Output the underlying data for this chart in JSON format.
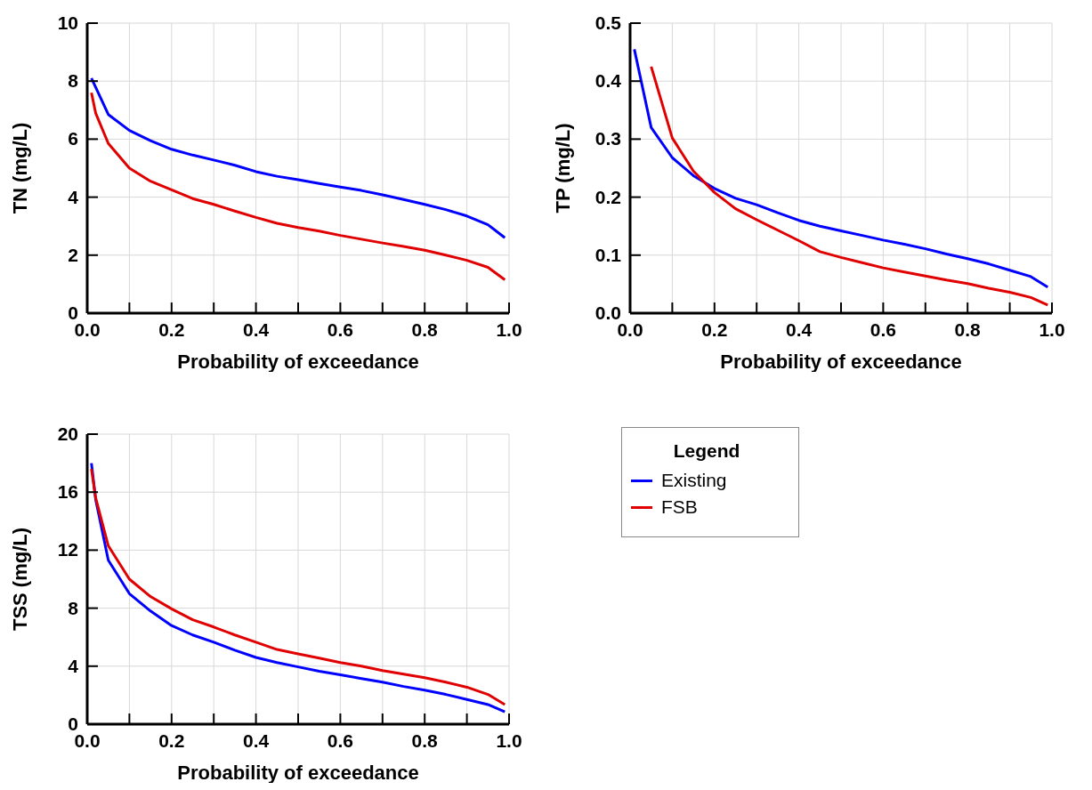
{
  "chart_data": [
    {
      "type": "line",
      "xlabel": "Probability of exceedance",
      "ylabel": "TN (mg/L)",
      "xlim": [
        0,
        1
      ],
      "ylim": [
        0,
        10
      ],
      "xticks": [
        {
          "value": 0,
          "label": "0.0"
        },
        {
          "value": 0.1,
          "label": null
        },
        {
          "value": 0.2,
          "label": "0.2"
        },
        {
          "value": 0.3,
          "label": null
        },
        {
          "value": 0.4,
          "label": "0.4"
        },
        {
          "value": 0.5,
          "label": null
        },
        {
          "value": 0.6,
          "label": "0.6"
        },
        {
          "value": 0.7,
          "label": null
        },
        {
          "value": 0.8,
          "label": "0.8"
        },
        {
          "value": 0.9,
          "label": null
        },
        {
          "value": 1,
          "label": "1.0"
        }
      ],
      "yticks": [
        0,
        2,
        4,
        6,
        8,
        10
      ],
      "grid": true,
      "legend": false,
      "marker": "none",
      "line_style": "solid",
      "series": [
        {
          "color": "#0000ff",
          "x": [
            0.01,
            0.05,
            0.1,
            0.15,
            0.2,
            0.25,
            0.3,
            0.35,
            0.4,
            0.45,
            0.5,
            0.55,
            0.6,
            0.65,
            0.7,
            0.75,
            0.8,
            0.85,
            0.9,
            0.95,
            0.99
          ],
          "values": [
            8.1,
            6.85,
            6.3,
            5.95,
            5.65,
            5.45,
            5.28,
            5.1,
            4.88,
            4.72,
            4.6,
            4.47,
            4.35,
            4.23,
            4.08,
            3.92,
            3.75,
            3.57,
            3.35,
            3.05,
            2.6
          ]
        },
        {
          "color": "#e00000",
          "x": [
            0.01,
            0.02,
            0.05,
            0.1,
            0.15,
            0.2,
            0.25,
            0.3,
            0.35,
            0.4,
            0.45,
            0.5,
            0.55,
            0.6,
            0.65,
            0.7,
            0.75,
            0.8,
            0.85,
            0.9,
            0.95,
            0.99
          ],
          "values": [
            7.6,
            6.9,
            5.85,
            5.0,
            4.55,
            4.25,
            3.95,
            3.75,
            3.52,
            3.3,
            3.1,
            2.95,
            2.83,
            2.68,
            2.55,
            2.42,
            2.3,
            2.17,
            2.0,
            1.82,
            1.58,
            1.15
          ]
        }
      ]
    },
    {
      "type": "line",
      "xlabel": "Probability of exceedance",
      "ylabel": "TP (mg/L)",
      "xlim": [
        0,
        1
      ],
      "ylim": [
        0,
        0.5
      ],
      "xticks": [
        {
          "value": 0,
          "label": "0.0"
        },
        {
          "value": 0.1,
          "label": null
        },
        {
          "value": 0.2,
          "label": "0.2"
        },
        {
          "value": 0.3,
          "label": null
        },
        {
          "value": 0.4,
          "label": "0.4"
        },
        {
          "value": 0.5,
          "label": null
        },
        {
          "value": 0.6,
          "label": "0.6"
        },
        {
          "value": 0.7,
          "label": null
        },
        {
          "value": 0.8,
          "label": "0.8"
        },
        {
          "value": 0.9,
          "label": null
        },
        {
          "value": 1,
          "label": "1.0"
        }
      ],
      "yticks": [
        {
          "value": 0,
          "label": "0.0"
        },
        0.1,
        0.2,
        0.3,
        0.4,
        0.5
      ],
      "grid": true,
      "legend": false,
      "marker": "none",
      "line_style": "solid",
      "series": [
        {
          "color": "#0000ff",
          "x": [
            0.01,
            0.05,
            0.1,
            0.15,
            0.2,
            0.25,
            0.3,
            0.35,
            0.4,
            0.45,
            0.5,
            0.55,
            0.6,
            0.65,
            0.7,
            0.75,
            0.8,
            0.85,
            0.9,
            0.95,
            0.99
          ],
          "values": [
            0.455,
            0.32,
            0.268,
            0.237,
            0.215,
            0.198,
            0.187,
            0.173,
            0.16,
            0.15,
            0.142,
            0.134,
            0.126,
            0.119,
            0.111,
            0.102,
            0.094,
            0.085,
            0.074,
            0.063,
            0.045
          ]
        },
        {
          "color": "#e00000",
          "x": [
            0.05,
            0.1,
            0.15,
            0.2,
            0.25,
            0.3,
            0.35,
            0.4,
            0.45,
            0.5,
            0.55,
            0.6,
            0.65,
            0.7,
            0.75,
            0.8,
            0.85,
            0.9,
            0.95,
            0.99
          ],
          "values": [
            0.425,
            0.302,
            0.245,
            0.208,
            0.18,
            0.161,
            0.143,
            0.125,
            0.106,
            0.096,
            0.087,
            0.078,
            0.071,
            0.064,
            0.057,
            0.051,
            0.043,
            0.036,
            0.027,
            0.014
          ]
        }
      ]
    },
    {
      "type": "line",
      "xlabel": "Probability of exceedance",
      "ylabel": "TSS (mg/L)",
      "xlim": [
        0,
        1
      ],
      "ylim": [
        0,
        20
      ],
      "xticks": [
        {
          "value": 0,
          "label": "0.0"
        },
        {
          "value": 0.1,
          "label": null
        },
        {
          "value": 0.2,
          "label": "0.2"
        },
        {
          "value": 0.3,
          "label": null
        },
        {
          "value": 0.4,
          "label": "0.4"
        },
        {
          "value": 0.5,
          "label": null
        },
        {
          "value": 0.6,
          "label": "0.6"
        },
        {
          "value": 0.7,
          "label": null
        },
        {
          "value": 0.8,
          "label": "0.8"
        },
        {
          "value": 0.9,
          "label": null
        },
        {
          "value": 1,
          "label": "1.0"
        }
      ],
      "yticks": [
        0,
        4,
        8,
        12,
        16,
        20
      ],
      "grid": true,
      "legend": "right",
      "legend_title": "Legend",
      "marker": "none",
      "line_style": "solid",
      "series": [
        {
          "name": "Existing",
          "color": "#0000ff",
          "x": [
            0.01,
            0.02,
            0.05,
            0.1,
            0.15,
            0.2,
            0.25,
            0.3,
            0.35,
            0.4,
            0.45,
            0.5,
            0.55,
            0.6,
            0.65,
            0.7,
            0.75,
            0.8,
            0.85,
            0.9,
            0.95,
            0.99
          ],
          "values": [
            18,
            15.5,
            11.3,
            9.0,
            7.8,
            6.8,
            6.15,
            5.65,
            5.1,
            4.6,
            4.25,
            3.95,
            3.65,
            3.4,
            3.15,
            2.9,
            2.6,
            2.35,
            2.05,
            1.7,
            1.35,
            0.85
          ]
        },
        {
          "name": "FSB",
          "color": "#e00000",
          "x": [
            0.01,
            0.02,
            0.05,
            0.1,
            0.15,
            0.2,
            0.25,
            0.3,
            0.35,
            0.4,
            0.45,
            0.5,
            0.55,
            0.6,
            0.65,
            0.7,
            0.75,
            0.8,
            0.85,
            0.9,
            0.95,
            0.99
          ],
          "values": [
            17.6,
            15.6,
            12.3,
            10.0,
            8.8,
            7.95,
            7.2,
            6.7,
            6.15,
            5.65,
            5.15,
            4.85,
            4.55,
            4.25,
            4.0,
            3.7,
            3.45,
            3.2,
            2.9,
            2.55,
            2.05,
            1.35
          ]
        }
      ]
    }
  ]
}
